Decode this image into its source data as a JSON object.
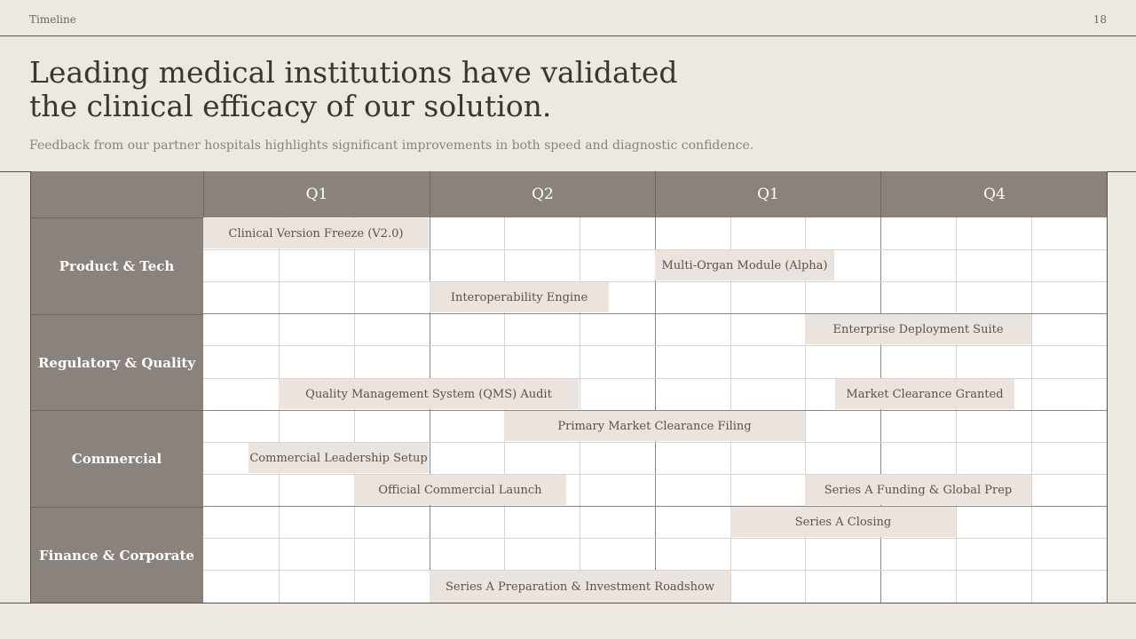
{
  "header": {
    "section": "Timeline",
    "page_number": "18"
  },
  "title": {
    "line1": "Leading medical institutions have validated",
    "line2": "the clinical efficacy of our solution."
  },
  "subtitle": "Feedback from our partner hospitals highlights significant improvements in both speed and diagnostic confidence.",
  "timeline": {
    "quarters": [
      "Q1",
      "Q2",
      "Q1",
      "Q4"
    ],
    "groups": [
      {
        "label": "Product & Tech"
      },
      {
        "label": "Regulatory & Quality"
      },
      {
        "label": "Commercial"
      },
      {
        "label": "Finance & Corporate"
      }
    ],
    "tasks": [
      {
        "label": "Clinical Version Freeze (V2.0)"
      },
      {
        "label": "Multi-Organ Module (Alpha)"
      },
      {
        "label": "Interoperability Engine"
      },
      {
        "label": "Enterprise Deployment Suite"
      },
      {
        "label": "Quality Management System (QMS) Audit"
      },
      {
        "label": "Market Clearance Granted"
      },
      {
        "label": "Primary Market Clearance Filing"
      },
      {
        "label": "Commercial Leadership Setup"
      },
      {
        "label": "Official Commercial Launch"
      },
      {
        "label": "Series A Funding & Global Prep"
      },
      {
        "label": "Series A Closing"
      },
      {
        "label": "Series A Preparation & Investment Roadshow"
      }
    ]
  },
  "colors": {
    "background": "#ede8e2",
    "header_fill": "#8a837d",
    "bar_fill": "#ebe3dd",
    "text_dark": "#3b3632"
  }
}
